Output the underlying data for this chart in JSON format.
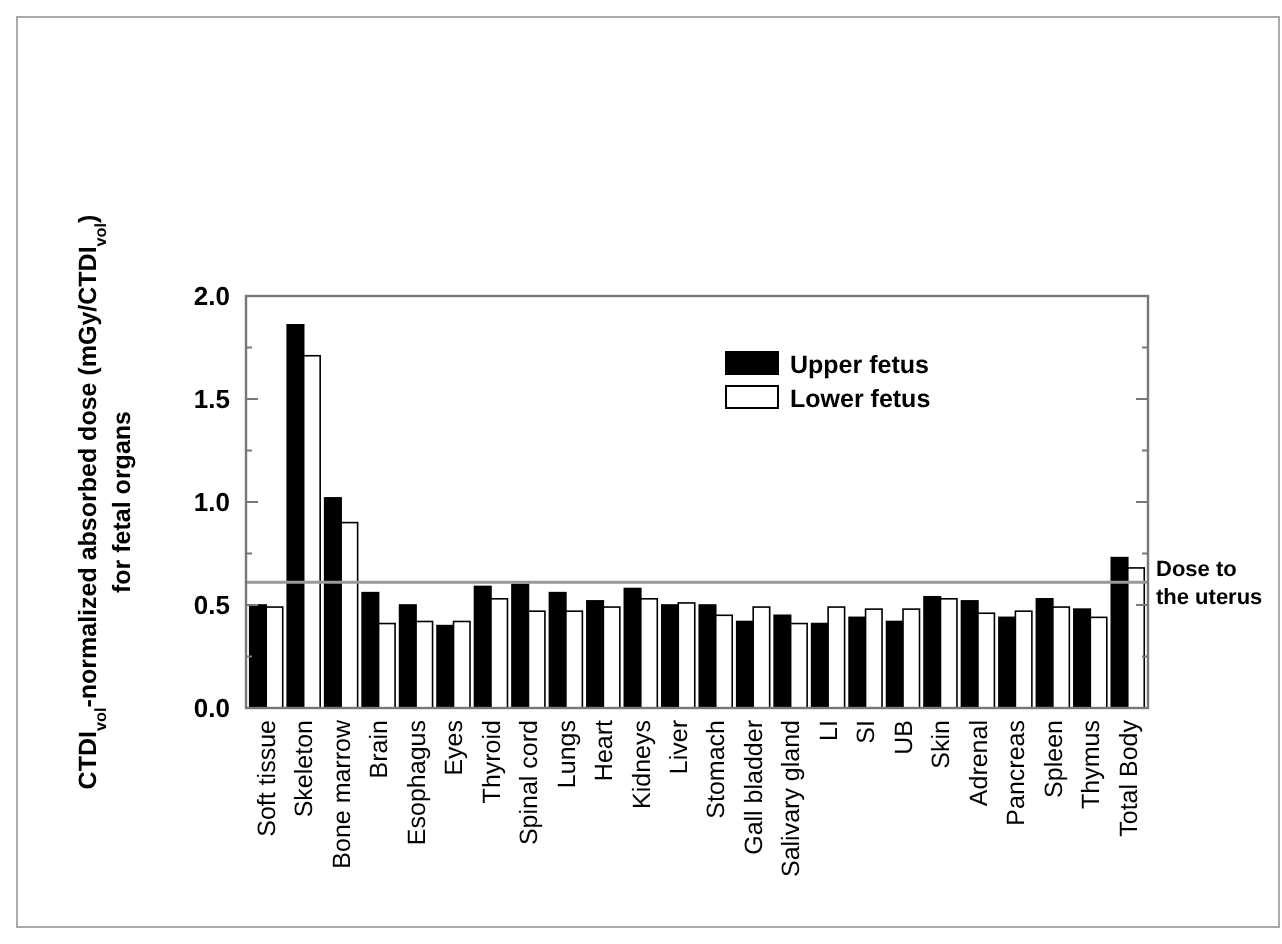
{
  "chart_data": {
    "type": "bar",
    "ylabel": "CTDI$_{vol}$-normalized absorbed dose (mGy/CTDI$_{vol}$)\nfor fetal organs",
    "categories": [
      "Soft tissue",
      "Skeleton",
      "Bone marrow",
      "Brain",
      "Esophagus",
      "Eyes",
      "Thyroid",
      "Spinal cord",
      "Lungs",
      "Heart",
      "Kidneys",
      "Liver",
      "Stomach",
      "Gall bladder",
      "Salivary gland",
      "LI",
      "SI",
      "UB",
      "Skin",
      "Adrenal",
      "Pancreas",
      "Spleen",
      "Thymus",
      "Total Body"
    ],
    "series": [
      {
        "name": "Upper fetus",
        "color": "#000000",
        "values": [
          0.5,
          1.86,
          1.02,
          0.56,
          0.5,
          0.4,
          0.59,
          0.6,
          0.56,
          0.52,
          0.58,
          0.5,
          0.5,
          0.42,
          0.45,
          0.41,
          0.44,
          0.42,
          0.54,
          0.52,
          0.44,
          0.53,
          0.48,
          0.73
        ]
      },
      {
        "name": "Lower fetus",
        "color": "#ffffff",
        "values": [
          0.49,
          1.71,
          0.9,
          0.41,
          0.42,
          0.42,
          0.53,
          0.47,
          0.47,
          0.49,
          0.53,
          0.51,
          0.45,
          0.49,
          0.41,
          0.49,
          0.48,
          0.48,
          0.53,
          0.46,
          0.47,
          0.49,
          0.44,
          0.68
        ]
      }
    ],
    "ylim": [
      0,
      2.0
    ],
    "yticks": [
      {
        "value": 0,
        "label": "0.0"
      },
      {
        "value": 0.25,
        "label": null
      },
      {
        "value": 0.5,
        "label": "0.5"
      },
      {
        "value": 0.75,
        "label": null
      },
      {
        "value": 1,
        "label": "1.0"
      },
      {
        "value": 1.25,
        "label": null
      },
      {
        "value": 1.5,
        "label": "1.5"
      },
      {
        "value": 1.75,
        "label": null
      },
      {
        "value": 2,
        "label": "2.0"
      }
    ],
    "ref_lines": [
      {
        "axis": "y",
        "value": 0.61,
        "label": "Dose to\nthe uterus",
        "color": "#999999"
      }
    ],
    "legend": "top right",
    "grid": false
  }
}
